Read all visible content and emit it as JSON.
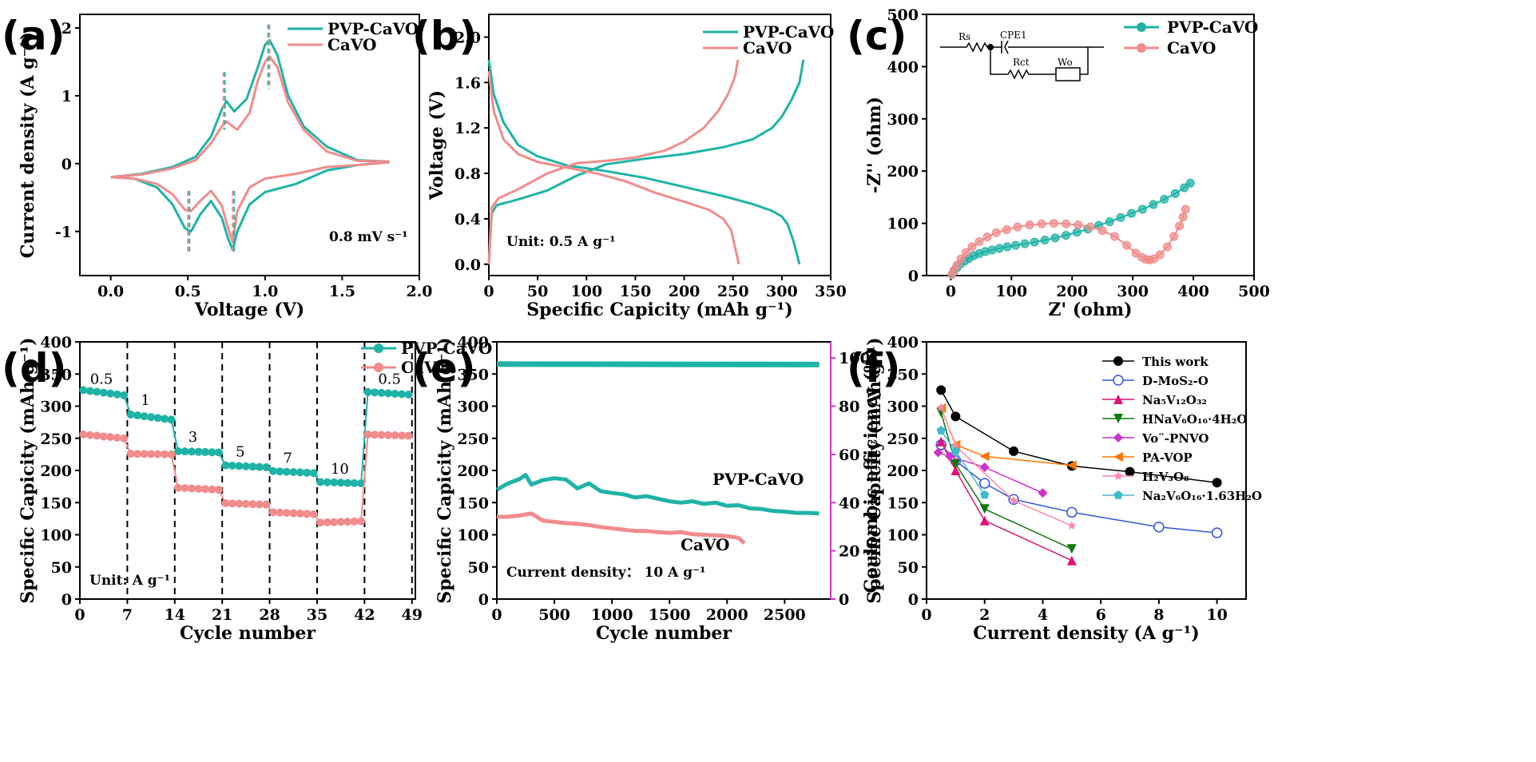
{
  "colors": {
    "teal": "#1fb3a6",
    "pink": "#f08c8c",
    "magenta": "#cc33cc",
    "black": "#000000"
  },
  "panel_labels": [
    "(a)",
    "(b)",
    "(c)",
    "(d)",
    "(e)",
    "(f)"
  ],
  "chart_data": [
    {
      "id": "a",
      "type": "line",
      "xlabel": "Voltage (V)",
      "ylabel": "Current density (A g⁻¹)",
      "xlim": [
        -0.2,
        2.0
      ],
      "ylim": [
        -1.65,
        2.2
      ],
      "xticks": [
        "0.0",
        "0.5",
        "1.0",
        "1.5",
        "2.0"
      ],
      "yticks": [
        "-1",
        "0",
        "1",
        "2"
      ],
      "annotation": "0.8 mV s⁻¹",
      "legend": [
        "PVP-CaVO",
        "CaVO"
      ],
      "legend_position": "top-right",
      "series": [
        {
          "name": "PVP-CaVO",
          "color": "teal",
          "x": [
            0.0,
            0.2,
            0.4,
            0.55,
            0.65,
            0.72,
            0.75,
            0.8,
            0.88,
            0.95,
            1.0,
            1.03,
            1.08,
            1.15,
            1.25,
            1.4,
            1.6,
            1.8,
            1.8,
            1.6,
            1.4,
            1.2,
            1.0,
            0.9,
            0.82,
            0.79,
            0.76,
            0.72,
            0.65,
            0.58,
            0.52,
            0.48,
            0.4,
            0.3,
            0.15,
            0.0
          ],
          "y": [
            -0.2,
            -0.15,
            -0.05,
            0.1,
            0.4,
            0.8,
            0.92,
            0.77,
            0.95,
            1.4,
            1.75,
            1.82,
            1.6,
            1.0,
            0.55,
            0.25,
            0.05,
            0.03,
            0.02,
            -0.02,
            -0.1,
            -0.3,
            -0.42,
            -0.6,
            -1.0,
            -1.27,
            -1.1,
            -0.8,
            -0.55,
            -0.75,
            -1.0,
            -0.95,
            -0.6,
            -0.35,
            -0.22,
            -0.2
          ]
        },
        {
          "name": "CaVO",
          "color": "pink",
          "x": [
            0.0,
            0.2,
            0.4,
            0.55,
            0.65,
            0.72,
            0.75,
            0.82,
            0.9,
            0.95,
            1.0,
            1.03,
            1.08,
            1.15,
            1.25,
            1.4,
            1.6,
            1.8,
            1.8,
            1.6,
            1.4,
            1.2,
            1.0,
            0.9,
            0.82,
            0.79,
            0.76,
            0.72,
            0.65,
            0.58,
            0.52,
            0.48,
            0.4,
            0.3,
            0.15,
            0.0
          ],
          "y": [
            -0.2,
            -0.16,
            -0.07,
            0.05,
            0.3,
            0.55,
            0.62,
            0.5,
            0.75,
            1.2,
            1.5,
            1.58,
            1.42,
            0.9,
            0.5,
            0.18,
            0.04,
            0.03,
            0.02,
            -0.02,
            -0.05,
            -0.15,
            -0.22,
            -0.35,
            -0.7,
            -1.15,
            -0.95,
            -0.62,
            -0.4,
            -0.55,
            -0.7,
            -0.68,
            -0.45,
            -0.3,
            -0.22,
            -0.2
          ]
        }
      ],
      "markers": [
        {
          "x": 0.74,
          "color": "teal"
        },
        {
          "x": 1.02,
          "color": "teal"
        },
        {
          "x": 0.73,
          "color": "pink"
        },
        {
          "x": 1.03,
          "color": "pink"
        },
        {
          "x": 0.51,
          "color": "teal"
        },
        {
          "x": 0.8,
          "color": "teal"
        },
        {
          "x": 0.5,
          "color": "pink"
        },
        {
          "x": 0.79,
          "color": "pink"
        }
      ]
    },
    {
      "id": "b",
      "type": "line",
      "xlabel": "Specific Capicity (mAh g⁻¹)",
      "ylabel": "Voltage (V)",
      "xlim": [
        0,
        350
      ],
      "ylim": [
        -0.1,
        2.2
      ],
      "xticks": [
        "0",
        "50",
        "100",
        "150",
        "200",
        "250",
        "300",
        "350"
      ],
      "yticks": [
        "0.0",
        "0.4",
        "0.8",
        "1.2",
        "1.6",
        "2.0"
      ],
      "annotation": "Unit: 0.5 A g⁻¹",
      "legend": [
        "PVP-CaVO",
        "CaVO"
      ],
      "legend_position": "top-right",
      "series": [
        {
          "name": "PVP-CaVO discharge",
          "color": "teal",
          "x": [
            0,
            5,
            15,
            30,
            50,
            80,
            120,
            160,
            200,
            240,
            270,
            290,
            300,
            306,
            312,
            318
          ],
          "y": [
            1.8,
            1.5,
            1.25,
            1.05,
            0.95,
            0.87,
            0.82,
            0.76,
            0.68,
            0.6,
            0.53,
            0.47,
            0.42,
            0.35,
            0.2,
            0.0
          ]
        },
        {
          "name": "PVP-CaVO charge",
          "color": "teal",
          "x": [
            0,
            3,
            8,
            30,
            60,
            90,
            120,
            160,
            200,
            240,
            270,
            290,
            300,
            310,
            318,
            322
          ],
          "y": [
            0.0,
            0.45,
            0.52,
            0.57,
            0.65,
            0.78,
            0.88,
            0.93,
            0.97,
            1.03,
            1.1,
            1.2,
            1.3,
            1.45,
            1.6,
            1.8
          ]
        },
        {
          "name": "CaVO discharge",
          "color": "pink",
          "x": [
            0,
            5,
            15,
            30,
            50,
            80,
            110,
            140,
            170,
            200,
            225,
            240,
            248,
            252,
            256
          ],
          "y": [
            1.7,
            1.35,
            1.1,
            0.97,
            0.9,
            0.85,
            0.8,
            0.73,
            0.63,
            0.55,
            0.48,
            0.4,
            0.3,
            0.15,
            0.0
          ]
        },
        {
          "name": "CaVO charge",
          "color": "pink",
          "x": [
            0,
            3,
            10,
            30,
            60,
            90,
            120,
            150,
            180,
            200,
            220,
            235,
            245,
            252,
            255
          ],
          "y": [
            0.0,
            0.5,
            0.58,
            0.66,
            0.8,
            0.89,
            0.91,
            0.94,
            1.0,
            1.08,
            1.2,
            1.35,
            1.5,
            1.65,
            1.8
          ]
        }
      ]
    },
    {
      "id": "c",
      "type": "scatter",
      "xlabel": "Z' (ohm)",
      "ylabel": "-Z'' (ohm)",
      "xlim": [
        -40,
        500
      ],
      "ylim": [
        0,
        500
      ],
      "xticks": [
        "0",
        "100",
        "200",
        "300",
        "400",
        "500"
      ],
      "yticks": [
        "0",
        "100",
        "200",
        "300",
        "400",
        "500"
      ],
      "circuit_labels": [
        "Rs",
        "CPE1",
        "Rct",
        "Wo"
      ],
      "legend": [
        "PVP-CaVO",
        "CaVO"
      ],
      "legend_position": "top-right",
      "series": [
        {
          "name": "PVP-CaVO",
          "color": "teal",
          "x": [
            2,
            5,
            10,
            16,
            23,
            30,
            38,
            47,
            57,
            68,
            80,
            93,
            107,
            122,
            138,
            155,
            172,
            190,
            208,
            226,
            244,
            262,
            280,
            298,
            316,
            334,
            352,
            370,
            385,
            395
          ],
          "y": [
            2,
            8,
            15,
            22,
            28,
            33,
            38,
            42,
            46,
            49,
            52,
            55,
            58,
            61,
            64,
            68,
            72,
            77,
            83,
            89,
            96,
            103,
            111,
            119,
            127,
            136,
            146,
            157,
            168,
            177
          ]
        },
        {
          "name": "CaVO",
          "color": "pink",
          "x": [
            2,
            5,
            10,
            17,
            25,
            35,
            47,
            60,
            75,
            92,
            110,
            130,
            150,
            170,
            190,
            210,
            230,
            250,
            270,
            290,
            305,
            315,
            322,
            328,
            335,
            345,
            357,
            368,
            377,
            383,
            387
          ],
          "y": [
            2,
            10,
            20,
            32,
            44,
            55,
            65,
            74,
            82,
            88,
            93,
            97,
            99,
            100,
            99,
            97,
            93,
            86,
            75,
            58,
            43,
            35,
            31,
            30,
            32,
            40,
            55,
            75,
            95,
            112,
            127
          ]
        }
      ]
    },
    {
      "id": "d",
      "type": "scatter",
      "xlabel": "Cycle number",
      "ylabel": "Specific Capicity (mAh g⁻¹)",
      "xlim": [
        0,
        49.5
      ],
      "ylim": [
        0,
        400
      ],
      "xticks": [
        "0",
        "7",
        "14",
        "21",
        "28",
        "35",
        "42",
        "49"
      ],
      "yticks": [
        "0",
        "50",
        "100",
        "150",
        "200",
        "250",
        "300",
        "350",
        "400"
      ],
      "annotation": "Unit: A g⁻¹",
      "rate_labels": [
        "0.5",
        "1",
        "3",
        "5",
        "7",
        "10",
        "0.5"
      ],
      "dividers": [
        7,
        14,
        21,
        28,
        35,
        42,
        49
      ],
      "legend": [
        "PVP-CaVO",
        "CaVO"
      ],
      "legend_position": "top-right",
      "series": [
        {
          "name": "PVP-CaVO",
          "color": "teal",
          "steps": [
            [
              325,
              317
            ],
            [
              287,
              279
            ],
            [
              230,
              228
            ],
            [
              208,
              205
            ],
            [
              199,
              196
            ],
            [
              182,
              180
            ],
            [
              322,
              318
            ]
          ]
        },
        {
          "name": "CaVO",
          "color": "pink",
          "steps": [
            [
              256,
              250
            ],
            [
              226,
              225
            ],
            [
              173,
              170
            ],
            [
              149,
              147
            ],
            [
              135,
              132
            ],
            [
              119,
              121
            ],
            [
              256,
              254
            ]
          ]
        }
      ]
    },
    {
      "id": "e",
      "type": "line",
      "xlabel": "Cycle number",
      "ylabel": "Specific Capicity (mAh g⁻¹)",
      "y2label": "Coulombic efficiency (%)",
      "xlim": [
        0,
        2900
      ],
      "ylim": [
        0,
        400
      ],
      "y2lim": [
        0,
        106.7
      ],
      "xticks": [
        "0",
        "500",
        "1000",
        "1500",
        "2000",
        "2500"
      ],
      "yticks": [
        "0",
        "50",
        "100",
        "150",
        "200",
        "250",
        "300",
        "350",
        "400"
      ],
      "y2ticks": [
        "0",
        "20",
        "40",
        "60",
        "80",
        "100"
      ],
      "annotation": "Current density： 10 A g⁻¹",
      "series_labels": [
        "PVP-CaVO",
        "CaVO"
      ],
      "series": [
        {
          "name": "PVP-CaVO",
          "color": "teal",
          "x": [
            0,
            100,
            200,
            250,
            300,
            400,
            500,
            600,
            700,
            800,
            900,
            1000,
            1100,
            1200,
            1300,
            1400,
            1500,
            1600,
            1700,
            1800,
            1900,
            2000,
            2100,
            2200,
            2300,
            2400,
            2500,
            2600,
            2700,
            2800
          ],
          "y": [
            170,
            180,
            187,
            193,
            178,
            185,
            188,
            186,
            172,
            180,
            168,
            165,
            163,
            158,
            160,
            156,
            152,
            150,
            152,
            148,
            150,
            145,
            146,
            141,
            140,
            137,
            136,
            134,
            134,
            133
          ]
        },
        {
          "name": "CaVO",
          "color": "pink",
          "x": [
            0,
            100,
            200,
            300,
            400,
            500,
            600,
            700,
            800,
            900,
            1000,
            1100,
            1200,
            1300,
            1400,
            1500,
            1600,
            1700,
            1800,
            1900,
            2000,
            2100,
            2150
          ],
          "y": [
            128,
            128,
            130,
            133,
            122,
            120,
            118,
            117,
            115,
            112,
            110,
            108,
            106,
            106,
            104,
            103,
            104,
            101,
            100,
            99,
            98,
            95,
            87
          ]
        },
        {
          "name": "Coulombic efficiency",
          "color": "teal",
          "axis": "y2",
          "x": [
            0,
            2800
          ],
          "y": [
            97.5,
            97.3
          ]
        }
      ]
    },
    {
      "id": "f",
      "type": "line",
      "xlabel": "Current density (A g⁻¹)",
      "ylabel": "Specific Capicity (mAh g⁻¹)",
      "xlim": [
        0,
        11
      ],
      "ylim": [
        0,
        400
      ],
      "xticks": [
        "0",
        "2",
        "4",
        "6",
        "8",
        "10"
      ],
      "yticks": [
        "0",
        "50",
        "100",
        "150",
        "200",
        "250",
        "300",
        "350",
        "400"
      ],
      "legend_position": "top-right",
      "series": [
        {
          "name": "This work",
          "color": "#000000",
          "marker": "circle",
          "x": [
            0.5,
            1,
            3,
            5,
            7,
            10
          ],
          "y": [
            325,
            284,
            230,
            207,
            198,
            181
          ]
        },
        {
          "name": "D-MoS₂-O",
          "color": "#3355dd",
          "marker": "open-circle",
          "x": [
            0.5,
            1,
            2,
            3,
            5,
            8,
            10
          ],
          "y": [
            240,
            215,
            180,
            155,
            135,
            112,
            103
          ]
        },
        {
          "name": "Na₅V₁₂O₃₂",
          "color": "#dd1177",
          "marker": "triangle-up",
          "x": [
            0.5,
            1,
            2,
            5
          ],
          "y": [
            245,
            200,
            122,
            60
          ]
        },
        {
          "name": "HNaV₆O₁₆·4H₂O",
          "color": "#117711",
          "marker": "triangle-down",
          "x": [
            0.5,
            1,
            2,
            5
          ],
          "y": [
            290,
            210,
            140,
            78
          ]
        },
        {
          "name": "Vo¨-PNVO",
          "color": "#cc33cc",
          "marker": "diamond",
          "x": [
            0.4,
            0.8,
            2,
            4
          ],
          "y": [
            228,
            222,
            205,
            165
          ]
        },
        {
          "name": "PA-VOP",
          "color": "#ff7700",
          "marker": "triangle-left",
          "x": [
            0.5,
            1,
            2,
            5
          ],
          "y": [
            297,
            240,
            222,
            208
          ]
        },
        {
          "name": "H₂V₃O₈",
          "color": "#ff88aa",
          "marker": "star",
          "x": [
            0.5,
            1,
            3,
            5
          ],
          "y": [
            298,
            238,
            153,
            114
          ]
        },
        {
          "name": "Na₂V₆O₁₆·1.63H₂O",
          "color": "#44bbcc",
          "marker": "pentagon",
          "x": [
            0.5,
            1,
            2
          ],
          "y": [
            262,
            230,
            162
          ]
        }
      ]
    }
  ]
}
